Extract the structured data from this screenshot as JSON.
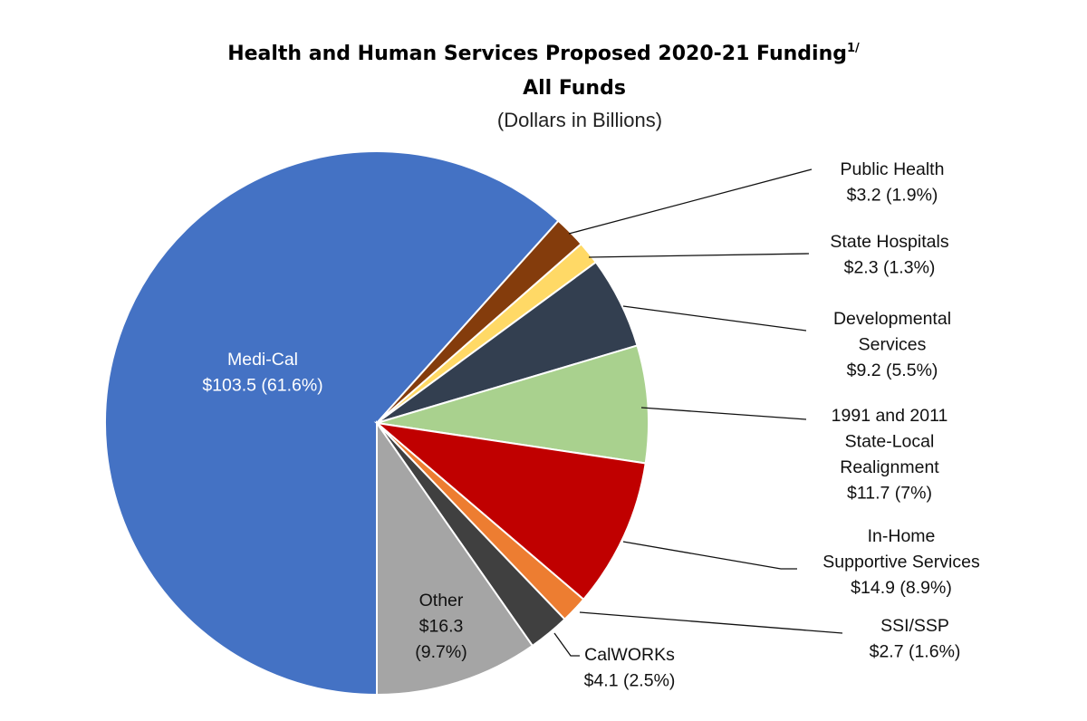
{
  "chart_data": {
    "type": "pie",
    "title": "Health and Human Services Proposed 2020-21 Funding",
    "title_footnote": "1/",
    "subtitle": "All Funds",
    "units": "(Dollars in Billions)",
    "start": "bottom",
    "direction": "clockwise",
    "slices": [
      {
        "name": "Medi-Cal",
        "value": 103.5,
        "percent": 61.6,
        "color": "#4472C4",
        "label_lines": [
          "Medi-Cal",
          "$103.5 (61.6%)"
        ]
      },
      {
        "name": "Public Health",
        "value": 3.2,
        "percent": 1.9,
        "color": "#843C0C",
        "label_lines": [
          "Public Health",
          "$3.2 (1.9%)"
        ]
      },
      {
        "name": "State Hospitals",
        "value": 2.3,
        "percent": 1.3,
        "color": "#FFD966",
        "label_lines": [
          "State Hospitals",
          "$2.3 (1.3%)"
        ]
      },
      {
        "name": "Developmental Services",
        "value": 9.2,
        "percent": 5.5,
        "color": "#333F50",
        "label_lines": [
          "Developmental",
          "Services",
          "$9.2 (5.5%)"
        ]
      },
      {
        "name": "1991 and 2011 State-Local Realignment",
        "value": 11.7,
        "percent": 7,
        "color": "#A9D18E",
        "label_lines": [
          "1991 and 2011",
          "State-Local",
          "Realignment",
          "$11.7 (7%)"
        ]
      },
      {
        "name": "In-Home Supportive Services",
        "value": 14.9,
        "percent": 8.9,
        "color": "#C00000",
        "label_lines": [
          "In-Home",
          "Supportive Services",
          "$14.9 (8.9%)"
        ]
      },
      {
        "name": "SSI/SSP",
        "value": 2.7,
        "percent": 1.6,
        "color": "#ED7D31",
        "label_lines": [
          "SSI/SSP",
          "$2.7 (1.6%)"
        ]
      },
      {
        "name": "CalWORKs",
        "value": 4.1,
        "percent": 2.5,
        "color": "#404040",
        "label_lines": [
          "CalWORKs",
          "$4.1 (2.5%)"
        ]
      },
      {
        "name": "Other",
        "value": 16.3,
        "percent": 9.7,
        "color": "#A5A5A5",
        "label_lines": [
          "Other",
          "$16.3",
          "(9.7%)"
        ]
      }
    ]
  }
}
